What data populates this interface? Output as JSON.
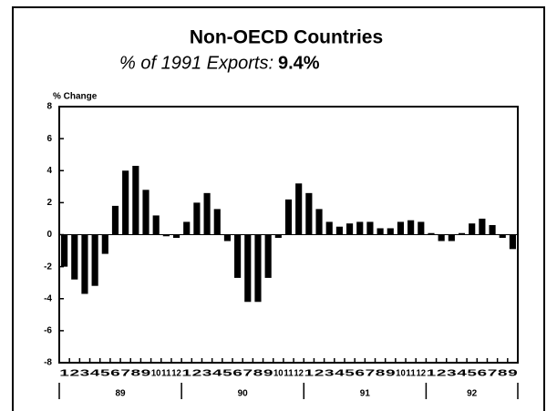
{
  "chart_data": {
    "type": "bar",
    "title": "Non-OECD Countries",
    "subtitle": "% of 1991 Exports:",
    "subtitle_value": "9.4%",
    "ylabel": "% Change",
    "categories": [
      "1",
      "2",
      "3",
      "4",
      "5",
      "6",
      "7",
      "8",
      "9",
      "10",
      "11",
      "12",
      "1",
      "2",
      "3",
      "4",
      "5",
      "6",
      "7",
      "8",
      "9",
      "10",
      "11",
      "12",
      "1",
      "2",
      "3",
      "4",
      "5",
      "6",
      "7",
      "8",
      "9",
      "10",
      "11",
      "12",
      "1",
      "2",
      "3",
      "4",
      "5",
      "6",
      "7",
      "8",
      "9"
    ],
    "years": [
      "89",
      "90",
      "91",
      "92"
    ],
    "values": [
      -2.0,
      -2.8,
      -3.7,
      -3.2,
      -1.2,
      1.8,
      4.0,
      4.3,
      2.8,
      1.2,
      -0.1,
      -0.2,
      0.8,
      2.0,
      2.6,
      1.6,
      -0.4,
      -2.7,
      -4.2,
      -4.2,
      -2.7,
      -0.2,
      2.2,
      3.2,
      2.6,
      1.6,
      0.8,
      0.5,
      0.7,
      0.8,
      0.8,
      0.4,
      0.4,
      0.8,
      0.9,
      0.8,
      0.1,
      -0.4,
      -0.4,
      0.1,
      0.7,
      1.0,
      0.6,
      -0.2,
      -0.9
    ],
    "color": "#000000",
    "ylim": [
      -8,
      8
    ],
    "yticks": [
      -8,
      -6,
      -4,
      -2,
      0,
      2,
      4,
      6,
      8
    ]
  }
}
